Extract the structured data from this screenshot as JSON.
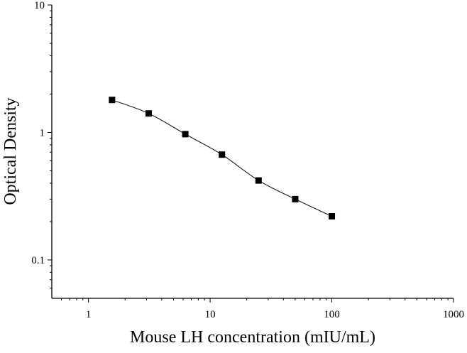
{
  "chart_data": {
    "type": "scatter",
    "x_label": "Mouse LH concentration (mIU/mL)",
    "y_label": "Optical Density",
    "x": [
      1.5625,
      3.125,
      6.25,
      12.5,
      25,
      50,
      100
    ],
    "values": [
      1.8,
      1.41,
      0.97,
      0.67,
      0.42,
      0.3,
      0.22
    ],
    "color": "#000000",
    "line": true,
    "xscale": "log",
    "yscale": "log",
    "xlim": [
      0.5,
      1000
    ],
    "ylim": [
      0.05,
      10
    ],
    "xticks": [
      1,
      10,
      100,
      1000
    ],
    "yticks": [
      0.1,
      1,
      10
    ]
  }
}
